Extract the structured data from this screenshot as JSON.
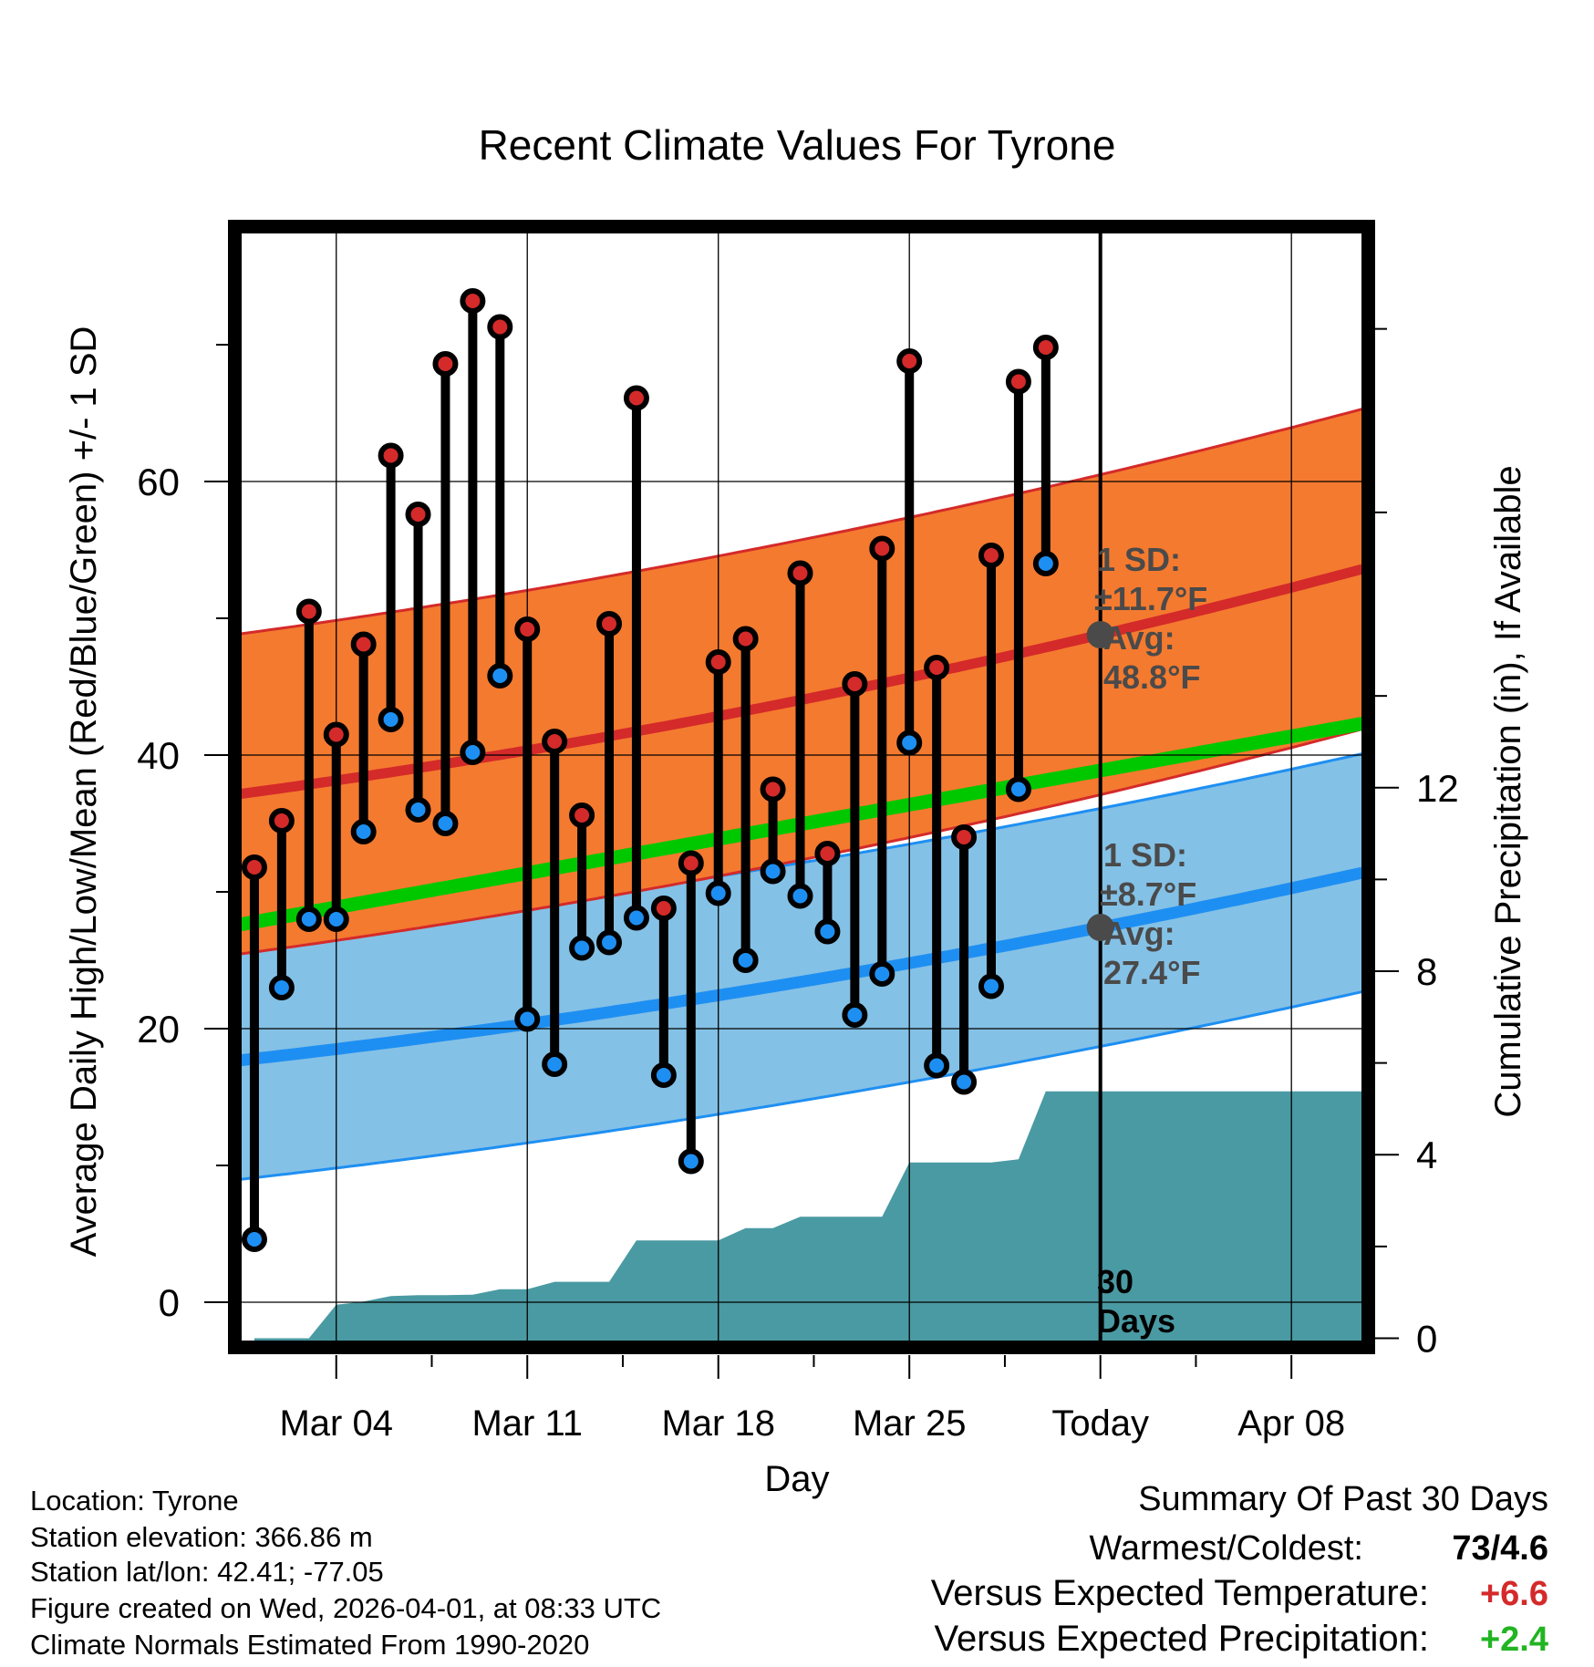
{
  "chart_data": {
    "type": "line",
    "title": "Recent Climate Values For Tyrone",
    "xlabel": "Day",
    "ylabel": "Average Daily High/Low/Mean (Red/Blue/Green) +/- 1 SD",
    "y2label": "Cumulative Precipitation (in), If Available",
    "ylim": [
      -2.8,
      78.2
    ],
    "y2lim": [
      -0.05,
      24.1
    ],
    "xlim": [
      0.5,
      41.6
    ],
    "yticks": [
      0,
      20,
      40,
      60
    ],
    "y2ticks": [
      0,
      4,
      8,
      12
    ],
    "xtick_positions": [
      4,
      11,
      18,
      25,
      32,
      39
    ],
    "xticks": [
      "Mar 04",
      "Mar 11",
      "Mar 18",
      "Mar 25",
      "Today",
      "Apr 08"
    ],
    "today_x": 32,
    "today_label": [
      "30",
      "Days"
    ],
    "highs": [
      31.8,
      35.2,
      50.5,
      41.5,
      48.1,
      61.9,
      57.6,
      68.6,
      73.2,
      71.3,
      49.2,
      41.0,
      35.6,
      49.6,
      66.1,
      28.8,
      32.1,
      46.8,
      48.5,
      37.5,
      53.3,
      32.8,
      45.2,
      55.1,
      68.8,
      46.4,
      34.0,
      54.6,
      67.3,
      69.8
    ],
    "lows": [
      4.6,
      23.0,
      28.0,
      28.0,
      34.4,
      42.6,
      36.0,
      35.0,
      40.2,
      45.8,
      20.7,
      17.4,
      25.9,
      26.3,
      28.1,
      16.6,
      10.3,
      29.9,
      25.0,
      31.5,
      29.7,
      27.1,
      21.0,
      24.0,
      40.9,
      17.3,
      16.1,
      23.1,
      37.5,
      54.0
    ],
    "normal_high": {
      "start": 37.3,
      "today": 48.8,
      "end": 53.6,
      "sd": 11.7
    },
    "normal_low": {
      "start": 17.8,
      "today": 27.4,
      "end": 31.4,
      "sd": 8.7
    },
    "normal_mean": {
      "start": 27.8,
      "end": 42.3
    },
    "precip_days": [
      1,
      2,
      3,
      4,
      5,
      6,
      7,
      8,
      9,
      10,
      11,
      12,
      13,
      14,
      15,
      16,
      17,
      18,
      19,
      20,
      21,
      22,
      23,
      24,
      25,
      26,
      27,
      28,
      29,
      30,
      41.6
    ],
    "precip_cum": [
      0.0,
      0.0,
      0.0,
      0.73,
      0.8,
      0.92,
      0.94,
      0.94,
      0.95,
      1.07,
      1.07,
      1.23,
      1.23,
      1.23,
      2.13,
      2.13,
      2.13,
      2.13,
      2.4,
      2.4,
      2.65,
      2.65,
      2.65,
      2.65,
      3.83,
      3.83,
      3.83,
      3.83,
      3.9,
      5.38,
      5.38
    ],
    "annotations": {
      "high_sd_label": "1 SD:",
      "high_sd_value": "±11.7°F",
      "high_avg_label": "Avg:",
      "high_avg_value": "48.8°F",
      "low_sd_label": "1 SD:",
      "low_sd_value": "±8.7°F",
      "low_avg_label": "Avg:",
      "low_avg_value": "27.4°F"
    },
    "colors": {
      "high_band": "#f47a2f",
      "high_line": "#d42a2a",
      "low_band": "#84c1e6",
      "low_line": "#1e8ff2",
      "mean_line": "#00c800",
      "precip": "#4a9aa3",
      "high_marker": "#d42a2a",
      "low_marker": "#1e8ff2",
      "avg_marker": "#4a4a4a",
      "positive_temp": "#d42a2a",
      "positive_precip": "#22b422"
    }
  },
  "footer": {
    "location": "Location: Tyrone",
    "elevation": "Station elevation: 366.86 m",
    "latlon": "Station lat/lon: 42.41; -77.05",
    "created": "Figure created on Wed, 2026-04-01, at 08:33 UTC",
    "normals": "Climate Normals Estimated From 1990-2020"
  },
  "summary": {
    "title": "Summary Of Past 30 Days",
    "warm_cold_label": "Warmest/Coldest:",
    "warm_cold_value": "73/4.6",
    "temp_label": "Versus Expected Temperature:",
    "temp_value": "+6.6",
    "precip_label": "Versus Expected Precipitation:",
    "precip_value": "+2.4"
  }
}
